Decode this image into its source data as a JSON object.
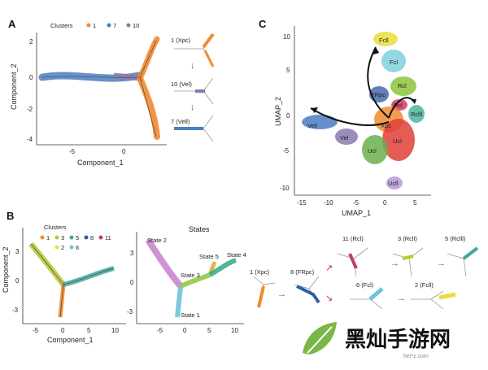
{
  "figure": {
    "panel_a": {
      "letter": "A",
      "legend_title": "Clusters",
      "legend_items": [
        {
          "label": "1",
          "color": "#f28a2e"
        },
        {
          "label": "7",
          "color": "#4a7ec2"
        },
        {
          "label": "10",
          "color": "#8a7ab0"
        }
      ],
      "xlabel": "Component_1",
      "ylabel": "Component_2",
      "xticks": [
        "-5",
        "0"
      ],
      "yticks": [
        "2",
        "0",
        "-2",
        "-4"
      ],
      "mini_labels": [
        "1 (Xpc)",
        "10 (Vel)",
        "7 (Vell)"
      ]
    },
    "panel_b": {
      "letter": "B",
      "left": {
        "legend_title": "Clusters",
        "legend_items": [
          {
            "label": "1",
            "color": "#f28a2e"
          },
          {
            "label": "3",
            "color": "#b7c832"
          },
          {
            "label": "5",
            "color": "#3fa9a0"
          },
          {
            "label": "8",
            "color": "#2f5fa8"
          },
          {
            "label": "11",
            "color": "#c23a6a"
          },
          {
            "label": "2",
            "color": "#e6df3a"
          },
          {
            "label": "6",
            "color": "#6cc4d8"
          }
        ],
        "xlabel": "Component_1",
        "ylabel": "Component_2",
        "xticks": [
          "-5",
          "0",
          "5",
          "10"
        ],
        "yticks": [
          "3",
          "0",
          "-3"
        ]
      },
      "right": {
        "title": "States",
        "state_labels": [
          "State 2",
          "State 5",
          "State 4",
          "State 3",
          "State 1"
        ],
        "xticks": [
          "-5",
          "0",
          "5",
          "10"
        ],
        "yticks": [
          "3",
          "0",
          "-3"
        ]
      },
      "trajectory_labels": [
        "1 (Xpc)",
        "8 (FRpc)",
        "11 (Rcl)",
        "3 (Rcll)",
        "5 (Rclll)",
        "6 (Fcl)",
        "2 (Fcll)"
      ]
    },
    "panel_c": {
      "letter": "C",
      "xlabel": "UMAP_1",
      "ylabel": "UMAP_2",
      "xticks": [
        "-15",
        "-10",
        "-5",
        "0",
        "5"
      ],
      "yticks": [
        "10",
        "5",
        "0",
        "-5",
        "-10"
      ],
      "cluster_labels": [
        "Fcll",
        "Fcl",
        "Rcl",
        "FRpc",
        "Rcl",
        "Rclll",
        "Vell",
        "Xpc",
        "Vel",
        "Ucl",
        "Ucl",
        "Ucll"
      ]
    },
    "watermark": {
      "text": "黑灿手游网",
      "url": "hei*z.com"
    }
  },
  "colors": {
    "orange": "#f28a2e",
    "blue": "#4a7ec2",
    "purple": "#8a7ab0",
    "red": "#e0403a",
    "green": "#6ab04c",
    "yellow": "#e8df3a"
  }
}
